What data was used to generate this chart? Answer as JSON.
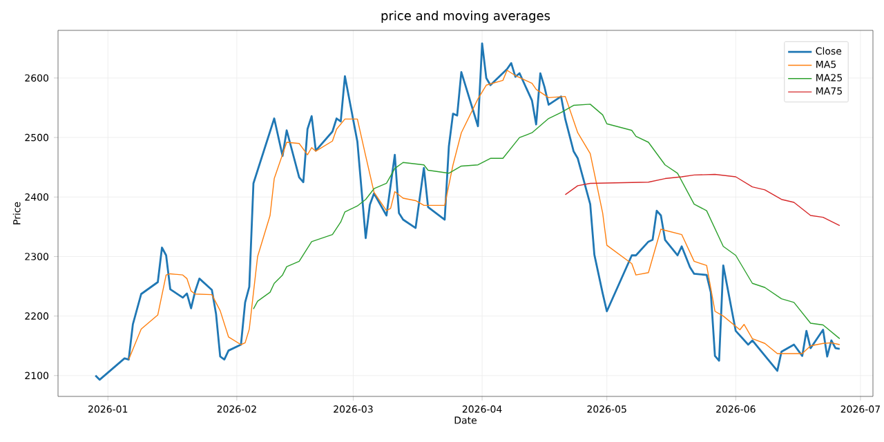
{
  "chart_data": {
    "type": "line",
    "title": "price and moving averages",
    "xlabel": "Date",
    "ylabel": "Price",
    "xlim": [
      "2025-12-20",
      "2026-07-04"
    ],
    "ylim": [
      2065,
      2680
    ],
    "xticks": [
      {
        "value": "2026-01-01",
        "label": "2026-01"
      },
      {
        "value": "2026-02-01",
        "label": "2026-02"
      },
      {
        "value": "2026-03-01",
        "label": "2026-03"
      },
      {
        "value": "2026-04-01",
        "label": "2026-04"
      },
      {
        "value": "2026-05-01",
        "label": "2026-05"
      },
      {
        "value": "2026-06-01",
        "label": "2026-06"
      },
      {
        "value": "2026-07-01",
        "label": "2026-07"
      }
    ],
    "yticks": [
      2100,
      2200,
      2300,
      2400,
      2500,
      2600
    ],
    "grid": true,
    "legend": "top right",
    "series": [
      {
        "name": "Close",
        "color": "#1f77b4",
        "x": [
          "2025-12-29",
          "2025-12-30",
          "2026-01-05",
          "2026-01-06",
          "2026-01-07",
          "2026-01-09",
          "2026-01-13",
          "2026-01-14",
          "2026-01-15",
          "2026-01-16",
          "2026-01-19",
          "2026-01-20",
          "2026-01-21",
          "2026-01-22",
          "2026-01-23",
          "2026-01-26",
          "2026-01-27",
          "2026-01-28",
          "2026-01-29",
          "2026-01-30",
          "2026-02-02",
          "2026-02-03",
          "2026-02-04",
          "2026-02-05",
          "2026-02-10",
          "2026-02-12",
          "2026-02-13",
          "2026-02-16",
          "2026-02-17",
          "2026-02-18",
          "2026-02-19",
          "2026-02-20",
          "2026-02-24",
          "2026-02-25",
          "2026-02-26",
          "2026-02-27",
          "2026-03-02",
          "2026-03-04",
          "2026-03-05",
          "2026-03-06",
          "2026-03-09",
          "2026-03-11",
          "2026-03-12",
          "2026-03-13",
          "2026-03-16",
          "2026-03-18",
          "2026-03-19",
          "2026-03-23",
          "2026-03-24",
          "2026-03-25",
          "2026-03-26",
          "2026-03-27",
          "2026-03-31",
          "2026-04-01",
          "2026-04-02",
          "2026-04-03",
          "2026-04-07",
          "2026-04-08",
          "2026-04-09",
          "2026-04-10",
          "2026-04-13",
          "2026-04-14",
          "2026-04-15",
          "2026-04-16",
          "2026-04-17",
          "2026-04-20",
          "2026-04-21",
          "2026-04-23",
          "2026-04-24",
          "2026-04-27",
          "2026-04-28",
          "2026-04-30",
          "2026-05-01",
          "2026-05-07",
          "2026-05-08",
          "2026-05-11",
          "2026-05-12",
          "2026-05-13",
          "2026-05-14",
          "2026-05-15",
          "2026-05-18",
          "2026-05-19",
          "2026-05-21",
          "2026-05-22",
          "2026-05-25",
          "2026-05-26",
          "2026-05-27",
          "2026-05-28",
          "2026-05-29",
          "2026-06-01",
          "2026-06-04",
          "2026-06-05",
          "2026-06-11",
          "2026-06-12",
          "2026-06-15",
          "2026-06-17",
          "2026-06-18",
          "2026-06-19",
          "2026-06-22",
          "2026-06-23",
          "2026-06-24",
          "2026-06-25",
          "2026-06-26"
        ],
        "values": [
          2100,
          2093,
          2129,
          2127,
          2186,
          2237,
          2257,
          2315,
          2302,
          2245,
          2231,
          2238,
          2213,
          2242,
          2263,
          2244,
          2204,
          2132,
          2127,
          2142,
          2152,
          2223,
          2249,
          2423,
          2532,
          2469,
          2512,
          2433,
          2425,
          2514,
          2536,
          2478,
          2510,
          2532,
          2527,
          2603,
          2493,
          2331,
          2387,
          2406,
          2369,
          2471,
          2373,
          2362,
          2348,
          2449,
          2383,
          2362,
          2485,
          2540,
          2537,
          2610,
          2519,
          2658,
          2600,
          2588,
          2615,
          2625,
          2602,
          2608,
          2562,
          2522,
          2608,
          2585,
          2555,
          2569,
          2531,
          2477,
          2465,
          2388,
          2303,
          2238,
          2208,
          2302,
          2302,
          2325,
          2328,
          2377,
          2369,
          2328,
          2302,
          2317,
          2282,
          2271,
          2269,
          2240,
          2133,
          2125,
          2285,
          2175,
          2152,
          2159,
          2108,
          2140,
          2152,
          2133,
          2175,
          2146,
          2177,
          2132,
          2159,
          2146,
          2145
        ]
      },
      {
        "name": "MA5",
        "color": "#ff7f0e",
        "x": [
          "2026-01-06",
          "2026-01-09",
          "2026-01-13",
          "2026-01-15",
          "2026-01-16",
          "2026-01-19",
          "2026-01-20",
          "2026-01-21",
          "2026-01-22",
          "2026-01-26",
          "2026-01-28",
          "2026-01-30",
          "2026-02-02",
          "2026-02-03",
          "2026-02-04",
          "2026-02-06",
          "2026-02-09",
          "2026-02-10",
          "2026-02-13",
          "2026-02-16",
          "2026-02-18",
          "2026-02-19",
          "2026-02-20",
          "2026-02-24",
          "2026-02-25",
          "2026-02-27",
          "2026-03-02",
          "2026-03-04",
          "2026-03-06",
          "2026-03-09",
          "2026-03-10",
          "2026-03-11",
          "2026-03-13",
          "2026-03-16",
          "2026-03-18",
          "2026-03-23",
          "2026-03-25",
          "2026-03-27",
          "2026-03-31",
          "2026-04-02",
          "2026-04-06",
          "2026-04-07",
          "2026-04-09",
          "2026-04-13",
          "2026-04-14",
          "2026-04-17",
          "2026-04-21",
          "2026-04-24",
          "2026-04-27",
          "2026-04-30",
          "2026-05-01",
          "2026-05-07",
          "2026-05-08",
          "2026-05-11",
          "2026-05-14",
          "2026-05-15",
          "2026-05-19",
          "2026-05-22",
          "2026-05-25",
          "2026-05-27",
          "2026-05-29",
          "2026-06-02",
          "2026-06-03",
          "2026-06-05",
          "2026-06-08",
          "2026-06-11",
          "2026-06-17",
          "2026-06-19",
          "2026-06-22",
          "2026-06-24",
          "2026-06-26"
        ],
        "values": [
          2127,
          2178,
          2202,
          2269,
          2271,
          2269,
          2263,
          2242,
          2237,
          2236,
          2209,
          2165,
          2152,
          2155,
          2178,
          2300,
          2369,
          2431,
          2492,
          2490,
          2471,
          2483,
          2477,
          2494,
          2514,
          2531,
          2531,
          2469,
          2408,
          2377,
          2381,
          2409,
          2398,
          2394,
          2386,
          2386,
          2454,
          2508,
          2565,
          2588,
          2596,
          2613,
          2604,
          2591,
          2581,
          2567,
          2569,
          2508,
          2473,
          2373,
          2319,
          2288,
          2269,
          2273,
          2346,
          2344,
          2337,
          2292,
          2285,
          2208,
          2200,
          2177,
          2186,
          2162,
          2154,
          2137,
          2137,
          2150,
          2154,
          2155,
          2152
        ]
      },
      {
        "name": "MA25",
        "color": "#2ca02c",
        "x": [
          "2026-02-05",
          "2026-02-06",
          "2026-02-09",
          "2026-02-10",
          "2026-02-12",
          "2026-02-13",
          "2026-02-16",
          "2026-02-19",
          "2026-02-24",
          "2026-02-26",
          "2026-02-27",
          "2026-03-02",
          "2026-03-04",
          "2026-03-06",
          "2026-03-09",
          "2026-03-11",
          "2026-03-13",
          "2026-03-18",
          "2026-03-19",
          "2026-03-24",
          "2026-03-27",
          "2026-03-31",
          "2026-04-03",
          "2026-04-06",
          "2026-04-10",
          "2026-04-13",
          "2026-04-17",
          "2026-04-20",
          "2026-04-23",
          "2026-04-27",
          "2026-04-30",
          "2026-05-01",
          "2026-05-07",
          "2026-05-08",
          "2026-05-11",
          "2026-05-15",
          "2026-05-18",
          "2026-05-22",
          "2026-05-25",
          "2026-05-29",
          "2026-06-01",
          "2026-06-05",
          "2026-06-08",
          "2026-06-12",
          "2026-06-15",
          "2026-06-19",
          "2026-06-22",
          "2026-06-26"
        ],
        "values": [
          2212,
          2225,
          2240,
          2255,
          2269,
          2283,
          2292,
          2325,
          2337,
          2358,
          2375,
          2385,
          2396,
          2414,
          2423,
          2448,
          2458,
          2454,
          2445,
          2440,
          2452,
          2454,
          2465,
          2465,
          2500,
          2508,
          2532,
          2542,
          2554,
          2556,
          2538,
          2523,
          2512,
          2502,
          2492,
          2454,
          2440,
          2388,
          2377,
          2317,
          2302,
          2255,
          2248,
          2229,
          2223,
          2188,
          2185,
          2162
        ]
      },
      {
        "name": "MA75",
        "color": "#d62728",
        "x": [
          "2026-04-21",
          "2026-04-24",
          "2026-04-27",
          "2026-05-11",
          "2026-05-15",
          "2026-05-19",
          "2026-05-22",
          "2026-05-27",
          "2026-06-01",
          "2026-06-05",
          "2026-06-08",
          "2026-06-12",
          "2026-06-15",
          "2026-06-19",
          "2026-06-22",
          "2026-06-26"
        ],
        "values": [
          2404,
          2419,
          2423,
          2425,
          2431,
          2434,
          2437,
          2438,
          2434,
          2417,
          2412,
          2396,
          2391,
          2369,
          2366,
          2352
        ]
      }
    ]
  }
}
